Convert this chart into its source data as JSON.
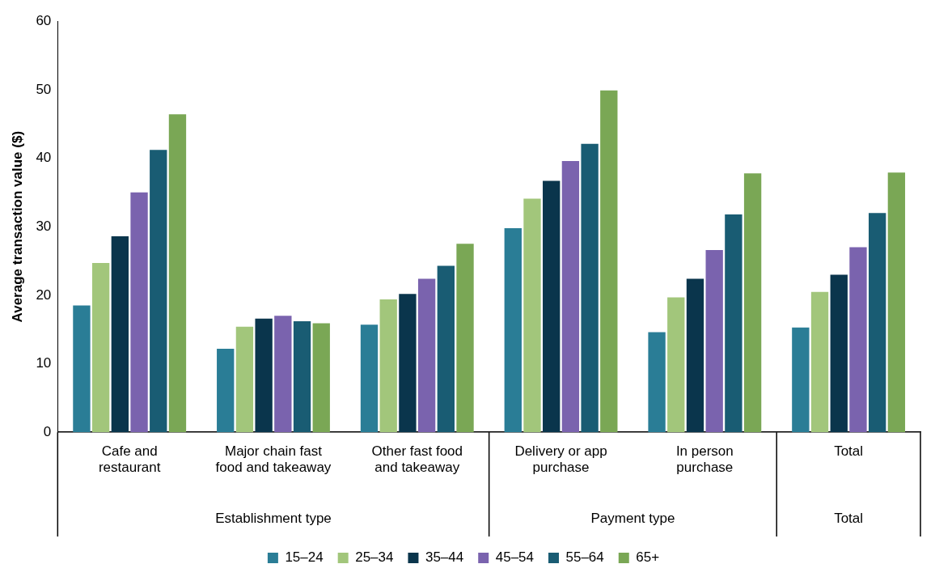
{
  "chart_data": {
    "type": "bar",
    "ylabel": "Average transaction value ($)",
    "categories": [
      "Cafe and restaurant",
      "Major chain fast food and takeaway",
      "Other fast food and takeaway",
      "Delivery or app purchase",
      "In person purchase",
      "Total"
    ],
    "series": [
      {
        "name": "15–24",
        "color": "#2a7d96",
        "values": [
          18.5,
          12.2,
          15.7,
          29.8,
          14.6,
          15.3
        ]
      },
      {
        "name": "25–34",
        "color": "#a2c67b",
        "values": [
          24.7,
          15.4,
          19.4,
          34.1,
          19.7,
          20.5
        ]
      },
      {
        "name": "35–44",
        "color": "#0a354c",
        "values": [
          28.6,
          16.6,
          20.2,
          36.7,
          22.4,
          23.0
        ]
      },
      {
        "name": "45–54",
        "color": "#7a63ae",
        "values": [
          35.0,
          17.0,
          22.4,
          39.6,
          26.6,
          27.0
        ]
      },
      {
        "name": "55–64",
        "color": "#195c73",
        "values": [
          41.2,
          16.2,
          24.3,
          42.1,
          31.8,
          32.0
        ]
      },
      {
        "name": "65+",
        "color": "#7aa755",
        "values": [
          46.4,
          15.9,
          27.5,
          49.9,
          37.8,
          37.9
        ]
      }
    ],
    "annotations": [
      "Establishment type",
      "Payment type",
      "Total"
    ],
    "ylim": [
      0,
      60
    ],
    "yticks": [
      0,
      10,
      20,
      30,
      40,
      50,
      60
    ],
    "grid": false,
    "legend": "bottom"
  }
}
